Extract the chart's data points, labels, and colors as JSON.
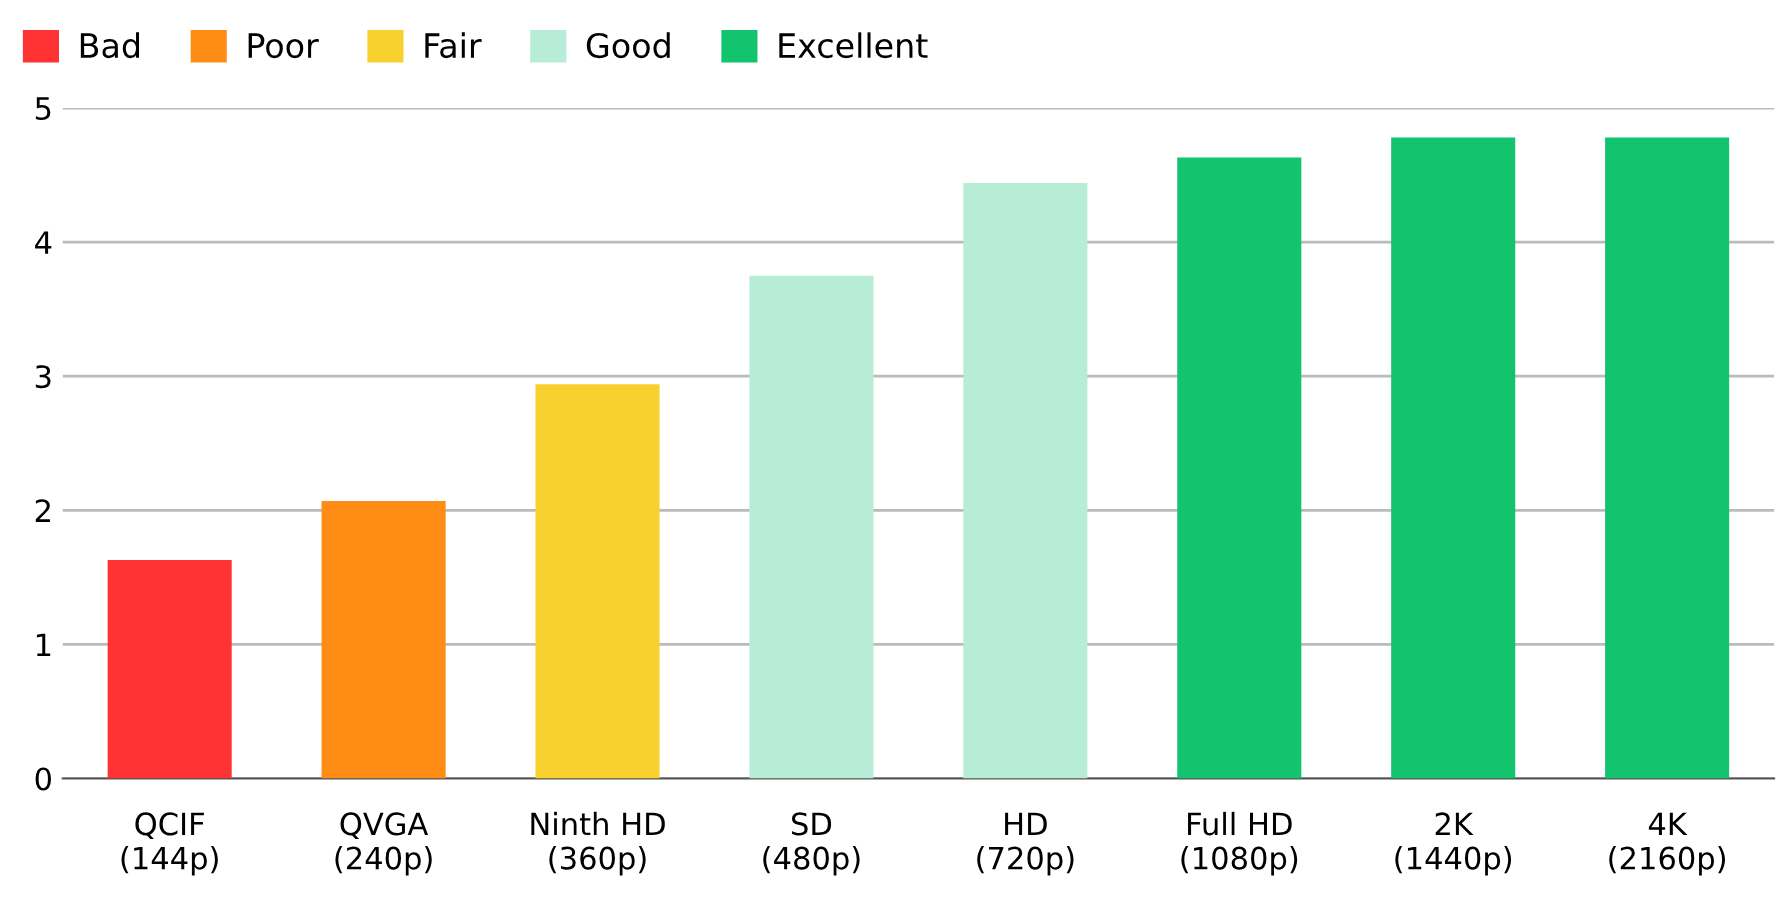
{
  "chart_data": {
    "type": "bar",
    "categories": [
      "QCIF\n(144p)",
      "QVGA\n(240p)",
      "Ninth HD\n(360p)",
      "SD\n(480p)",
      "HD\n(720p)",
      "Full HD\n(1080p)",
      "2K\n(1440p)",
      "4K\n(2160p)"
    ],
    "series": [
      {
        "name": "Bad",
        "color": "#ff3333",
        "values": [
          1.63,
          null,
          null,
          null,
          null,
          null,
          null,
          null
        ]
      },
      {
        "name": "Poor",
        "color": "#ff8c14",
        "values": [
          null,
          2.07,
          null,
          null,
          null,
          null,
          null,
          null
        ]
      },
      {
        "name": "Fair",
        "color": "#f9d12f",
        "values": [
          null,
          null,
          2.94,
          null,
          null,
          null,
          null,
          null
        ]
      },
      {
        "name": "Good",
        "color": "#b7ecd6",
        "values": [
          null,
          null,
          null,
          3.75,
          4.44,
          null,
          null,
          null
        ]
      },
      {
        "name": "Excellent",
        "color": "#12c46e",
        "values": [
          null,
          null,
          null,
          null,
          null,
          4.63,
          4.78,
          4.78
        ]
      }
    ],
    "ylim": [
      0,
      5
    ],
    "yticks": [
      0,
      1,
      2,
      3,
      4,
      5
    ],
    "grid": "y",
    "legend": "top left"
  }
}
